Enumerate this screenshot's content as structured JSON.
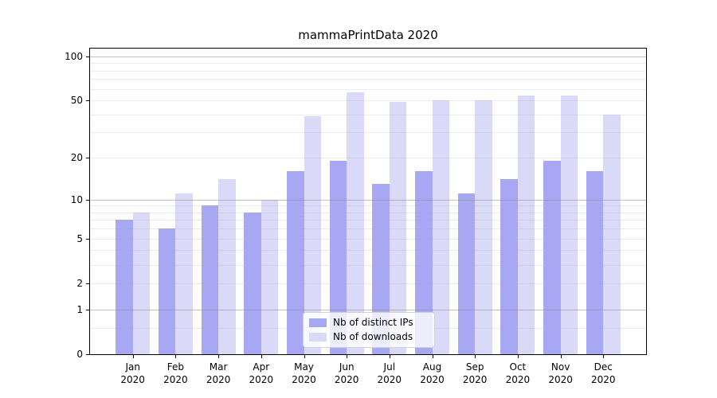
{
  "chart_data": {
    "type": "bar",
    "title": "mammaPrintData 2020",
    "categories": [
      "Jan",
      "Feb",
      "Mar",
      "Apr",
      "May",
      "Jun",
      "Jul",
      "Aug",
      "Sep",
      "Oct",
      "Nov",
      "Dec"
    ],
    "category_year": "2020",
    "series": [
      {
        "name": "Nb of distinct IPs",
        "color": "#a7a7f4",
        "values": [
          7,
          6,
          9,
          8,
          16,
          19,
          13,
          16,
          11,
          14,
          19,
          16
        ]
      },
      {
        "name": "Nb of downloads",
        "color": "#dadaf8",
        "values": [
          8,
          11,
          14,
          10,
          39,
          57,
          49,
          50,
          50,
          54,
          54,
          40
        ]
      }
    ],
    "xlabel": "",
    "ylabel": "",
    "y_scale": "log1p",
    "y_ticks": [
      0,
      1,
      2,
      5,
      10,
      20,
      50,
      100
    ],
    "y_axis_max": 112.7,
    "major_gridlines": [
      1,
      10,
      100
    ],
    "minor_gridlines": [
      0.5,
      2,
      3,
      4,
      5,
      6,
      7,
      8,
      9,
      20,
      30,
      40,
      50,
      60,
      70,
      80,
      90
    ],
    "grid_on": true,
    "legend_position": "lower-center",
    "bar_group_width_fraction": 0.8
  }
}
